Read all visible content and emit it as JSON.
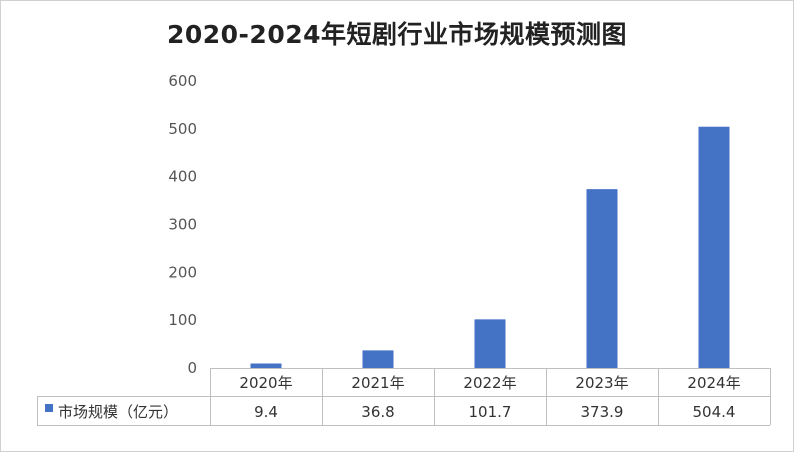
{
  "chart_data": {
    "type": "bar",
    "title": "2020-2024年短剧行业市场规模预测图",
    "categories": [
      "2020年",
      "2021年",
      "2022年",
      "2023年",
      "2024年"
    ],
    "series": [
      {
        "name": "市场规模（亿元）",
        "values": [
          9.4,
          36.8,
          101.7,
          373.9,
          504.4
        ],
        "color": "#4472C4"
      }
    ],
    "yticks": [
      0,
      100,
      200,
      300,
      400,
      500,
      600
    ],
    "ylim": [
      0,
      600
    ],
    "grid": false,
    "legend": "data-table",
    "data_table": true
  }
}
